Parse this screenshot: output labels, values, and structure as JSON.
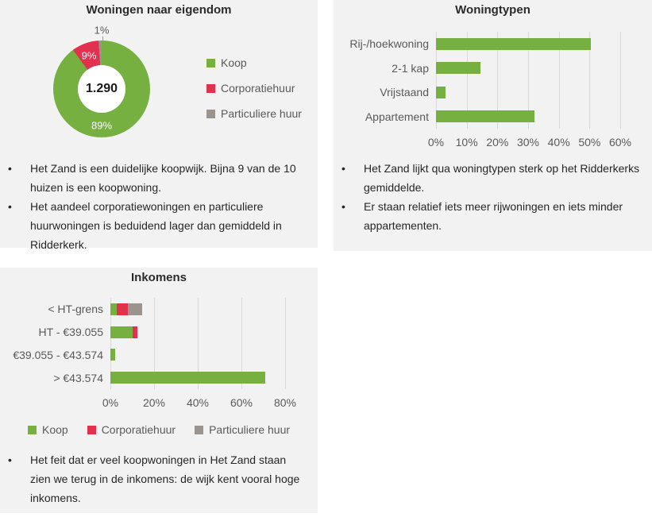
{
  "colors": {
    "green": "#76b041",
    "red": "#e1314f",
    "gray": "#9b948e",
    "panel_bg": "#f2f2f2",
    "page_bg": "#ffffff",
    "grid": "#d9d9d9",
    "axis_text": "#595959",
    "title_text": "#2b2b2b",
    "body_text": "#262626"
  },
  "chart_data": [
    {
      "type": "pie",
      "subtype": "donut",
      "title": "Woningen naar eigendom",
      "center_label": "1.290",
      "legend_position": "right",
      "slices": [
        {
          "label": "Koop",
          "value": 89,
          "display": "89%",
          "color_key": "green"
        },
        {
          "label": "Corporatiehuur",
          "value": 9,
          "display": "9%",
          "color_key": "red"
        },
        {
          "label": "Particuliere huur",
          "value": 1,
          "display": "1%",
          "color_key": "gray"
        }
      ]
    },
    {
      "type": "bar",
      "orientation": "horizontal",
      "title": "Woningtypen",
      "categories": [
        "Rij-/hoekwoning",
        "2-1 kap",
        "Vrijstaand",
        "Appartement"
      ],
      "values": [
        50.5,
        14.5,
        3,
        32
      ],
      "xlim": [
        0,
        60
      ],
      "ticks": [
        "0%",
        "10%",
        "20%",
        "30%",
        "40%",
        "50%",
        "60%"
      ],
      "grid": true,
      "legend_position": "none"
    },
    {
      "type": "bar",
      "subtype": "stacked",
      "orientation": "horizontal",
      "title": "Inkomens",
      "categories": [
        "< HT-grens",
        "HT - €39.055",
        "€39.055 - €43.574",
        "> €43.574"
      ],
      "series": [
        {
          "name": "Koop",
          "color_key": "green",
          "values": [
            3,
            10,
            2,
            71
          ]
        },
        {
          "name": "Corporatiehuur",
          "color_key": "red",
          "values": [
            5,
            2.5,
            0,
            0
          ]
        },
        {
          "name": "Particuliere huur",
          "color_key": "gray",
          "values": [
            6.5,
            0,
            0,
            0
          ]
        }
      ],
      "xlim": [
        0,
        80
      ],
      "ticks": [
        "0%",
        "20%",
        "40%",
        "60%",
        "80%"
      ],
      "grid": true,
      "legend_position": "bottom"
    }
  ],
  "bullets": {
    "eigendom": [
      "Het Zand is een duidelijke koopwijk. Bijna 9 van de 10 huizen is een koopwoning.",
      "Het aandeel corporatiewoningen en particuliere huurwoningen is beduidend lager dan gemiddeld in Ridderkerk."
    ],
    "woningtypen": [
      "Het Zand lijkt qua woningtypen sterk op het Ridderkerks gemiddelde.",
      "Er staan relatief iets meer rijwoningen en iets minder appartementen."
    ],
    "inkomens": [
      "Het feit dat er veel koopwoningen in Het Zand staan zien we terug in de inkomens: de wijk kent vooral hoge inkomens."
    ]
  }
}
